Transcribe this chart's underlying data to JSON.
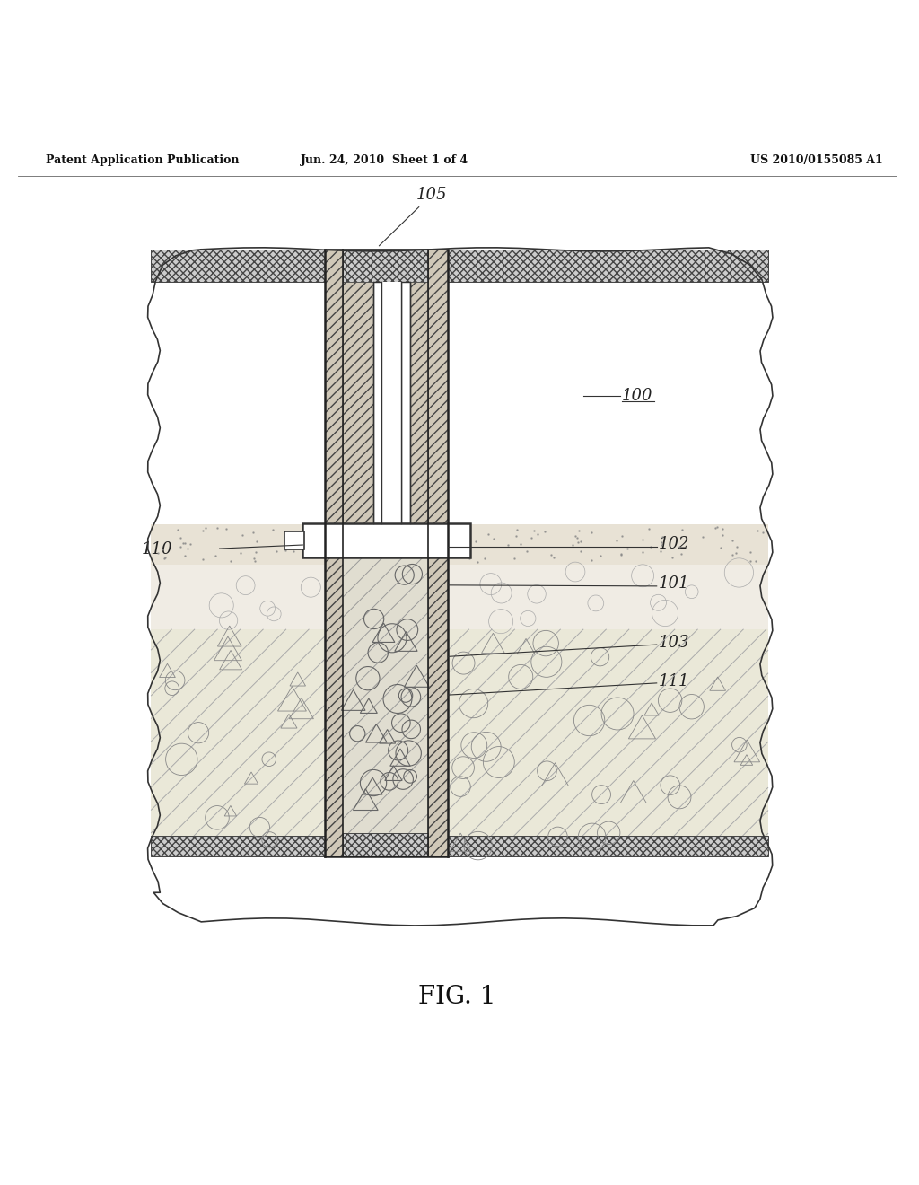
{
  "header_left": "Patent Application Publication",
  "header_mid": "Jun. 24, 2010  Sheet 1 of 4",
  "header_right": "US 2010/0155085 A1",
  "fig_label": "FIG. 1",
  "background_color": "#ffffff",
  "line_color": "#333333"
}
